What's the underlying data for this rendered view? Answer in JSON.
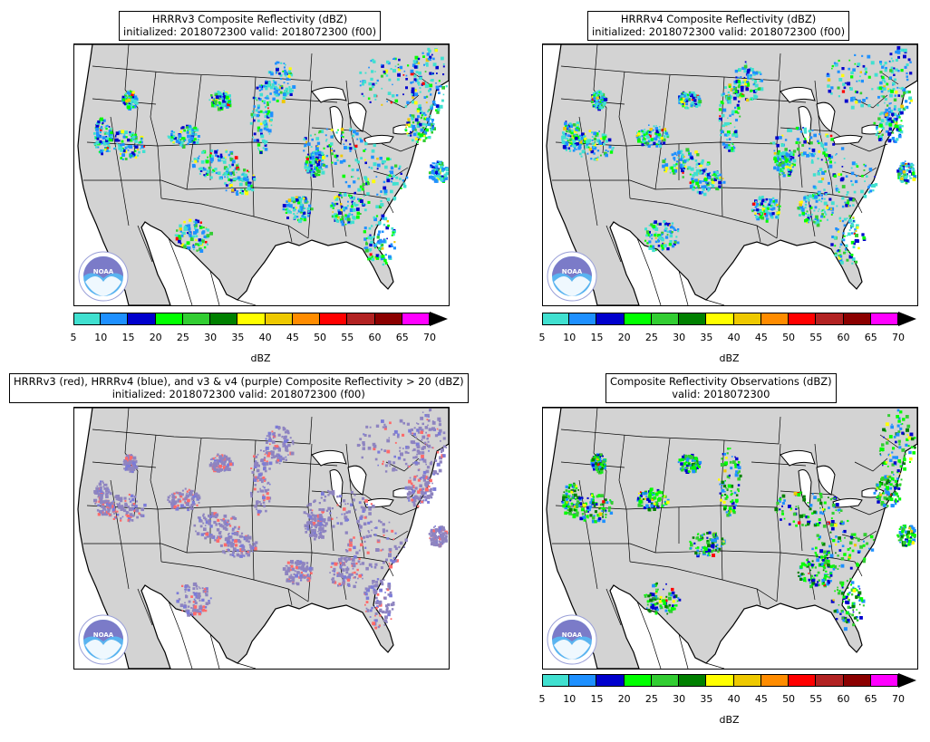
{
  "panels": [
    {
      "id": "hrrrv3",
      "title_line1": "HRRRv3 Composite Reflectivity (dBZ)",
      "title_line2": "initialized: 2018072300 valid: 2018072300 (f00)",
      "map_type": "reflectivity",
      "has_colorbar": true
    },
    {
      "id": "hrrrv4",
      "title_line1": "HRRRv4 Composite Reflectivity (dBZ)",
      "title_line2": "initialized: 2018072300 valid: 2018072300 (f00)",
      "map_type": "reflectivity",
      "has_colorbar": true
    },
    {
      "id": "comparison",
      "title_line1": "HRRRv3 (red), HRRRv4 (blue), and v3 & v4 (purple) Composite Reflectivity > 20 (dBZ)",
      "title_line2": "initialized: 2018072300 valid: 2018072300 (f00)",
      "map_type": "overlap",
      "has_colorbar": false
    },
    {
      "id": "observations",
      "title_line1": "Composite Reflectivity Observations (dBZ)",
      "title_line2": "valid: 2018072300",
      "map_type": "reflectivity",
      "has_colorbar": true
    }
  ],
  "colorbar": {
    "label": "dBZ",
    "ticks": [
      "5",
      "10",
      "15",
      "20",
      "25",
      "30",
      "35",
      "40",
      "45",
      "50",
      "55",
      "60",
      "65",
      "70"
    ],
    "colors": [
      "#40e0d0",
      "#1e90ff",
      "#0000cd",
      "#00ff00",
      "#32cd32",
      "#008000",
      "#ffff00",
      "#eec900",
      "#ff8c00",
      "#ff0000",
      "#b22222",
      "#8b0000",
      "#ff00ff"
    ],
    "extend_color": "#000000"
  },
  "overlap_colors": {
    "v3_only": "#ff6a6a",
    "v4_only": "#7b7bd8",
    "both": "#8e84c0"
  },
  "map_colors": {
    "land": "#d3d3d3",
    "water": "#ffffff",
    "borders": "#000000"
  },
  "logo": {
    "name": "noaa-logo",
    "text": "NOAA"
  }
}
